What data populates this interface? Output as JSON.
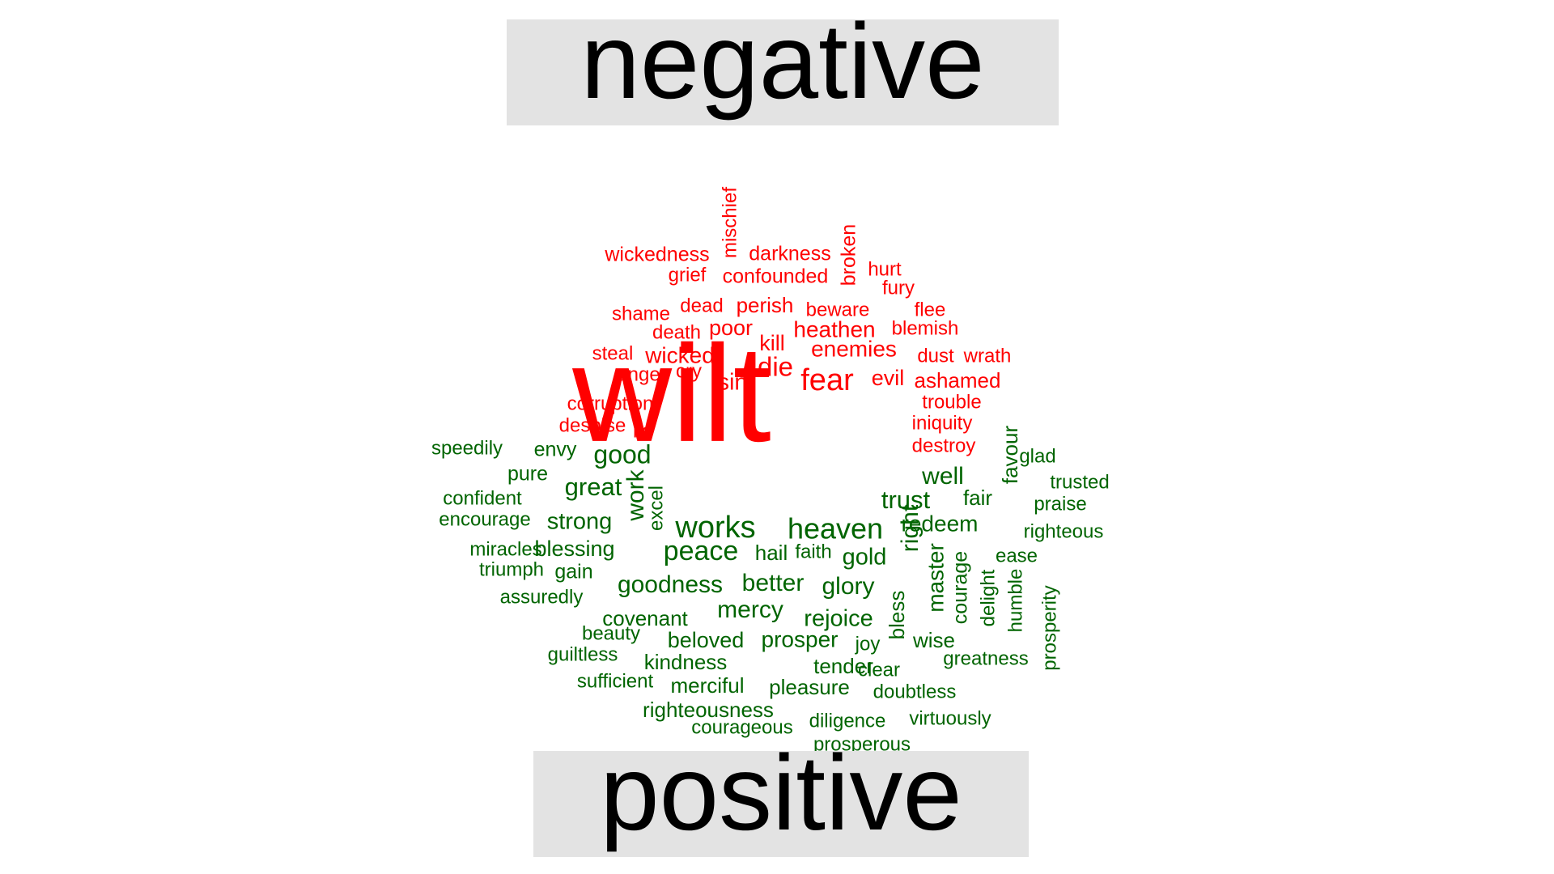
{
  "chart_data": {
    "type": "wordcloud",
    "groups": [
      {
        "name": "negative",
        "color": "#ff0000",
        "words": [
          {
            "text": "wilt",
            "size": 170
          },
          {
            "text": "fear",
            "size": 38
          },
          {
            "text": "die",
            "size": 33
          },
          {
            "text": "sin",
            "size": 29
          },
          {
            "text": "enemies",
            "size": 28
          },
          {
            "text": "heathen",
            "size": 28
          },
          {
            "text": "wicked",
            "size": 28
          },
          {
            "text": "poor",
            "size": 27
          },
          {
            "text": "evil",
            "size": 27
          },
          {
            "text": "kill",
            "size": 27
          },
          {
            "text": "perish",
            "size": 26
          },
          {
            "text": "ashamed",
            "size": 26
          },
          {
            "text": "wickedness",
            "size": 25
          },
          {
            "text": "darkness",
            "size": 25
          },
          {
            "text": "confounded",
            "size": 25
          },
          {
            "text": "broken",
            "size": 25
          },
          {
            "text": "mischief",
            "size": 24
          },
          {
            "text": "hurt",
            "size": 24
          },
          {
            "text": "fury",
            "size": 24
          },
          {
            "text": "grief",
            "size": 24
          },
          {
            "text": "shame",
            "size": 24
          },
          {
            "text": "dead",
            "size": 24
          },
          {
            "text": "beware",
            "size": 24
          },
          {
            "text": "flee",
            "size": 24
          },
          {
            "text": "death",
            "size": 24
          },
          {
            "text": "blemish",
            "size": 24
          },
          {
            "text": "steal",
            "size": 24
          },
          {
            "text": "dust",
            "size": 24
          },
          {
            "text": "wrath",
            "size": 24
          },
          {
            "text": "anger",
            "size": 24
          },
          {
            "text": "cry",
            "size": 24
          },
          {
            "text": "corruption",
            "size": 24
          },
          {
            "text": "trouble",
            "size": 24
          },
          {
            "text": "despise",
            "size": 24
          },
          {
            "text": "lie",
            "size": 24
          },
          {
            "text": "iniquity",
            "size": 24
          },
          {
            "text": "destroy",
            "size": 24
          }
        ]
      },
      {
        "name": "positive",
        "color": "#006400",
        "words": [
          {
            "text": "works",
            "size": 38
          },
          {
            "text": "heaven",
            "size": 36
          },
          {
            "text": "peace",
            "size": 34
          },
          {
            "text": "good",
            "size": 32
          },
          {
            "text": "great",
            "size": 31
          },
          {
            "text": "trust",
            "size": 31
          },
          {
            "text": "right",
            "size": 30
          },
          {
            "text": "work",
            "size": 30
          },
          {
            "text": "well",
            "size": 30
          },
          {
            "text": "goodness",
            "size": 30
          },
          {
            "text": "better",
            "size": 30
          },
          {
            "text": "glory",
            "size": 30
          },
          {
            "text": "mercy",
            "size": 30
          },
          {
            "text": "gold",
            "size": 29
          },
          {
            "text": "strong",
            "size": 29
          },
          {
            "text": "rejoice",
            "size": 29
          },
          {
            "text": "redeem",
            "size": 28
          },
          {
            "text": "master",
            "size": 28
          },
          {
            "text": "prosper",
            "size": 28
          },
          {
            "text": "beloved",
            "size": 27
          },
          {
            "text": "blessing",
            "size": 27
          },
          {
            "text": "favour",
            "size": 26
          },
          {
            "text": "fair",
            "size": 26
          },
          {
            "text": "hail",
            "size": 26
          },
          {
            "text": "covenant",
            "size": 26
          },
          {
            "text": "kindness",
            "size": 26
          },
          {
            "text": "tender",
            "size": 26
          },
          {
            "text": "merciful",
            "size": 26
          },
          {
            "text": "pleasure",
            "size": 26
          },
          {
            "text": "righteousness",
            "size": 26
          },
          {
            "text": "wise",
            "size": 26
          },
          {
            "text": "bless",
            "size": 26
          },
          {
            "text": "pure",
            "size": 25
          },
          {
            "text": "envy",
            "size": 25
          },
          {
            "text": "courage",
            "size": 25
          },
          {
            "text": "gain",
            "size": 25
          },
          {
            "text": "faith",
            "size": 24
          },
          {
            "text": "joy",
            "size": 24
          },
          {
            "text": "glad",
            "size": 24
          },
          {
            "text": "speedily",
            "size": 24
          },
          {
            "text": "trusted",
            "size": 24
          },
          {
            "text": "confident",
            "size": 24
          },
          {
            "text": "praise",
            "size": 24
          },
          {
            "text": "encourage",
            "size": 24
          },
          {
            "text": "excel",
            "size": 24
          },
          {
            "text": "righteous",
            "size": 24
          },
          {
            "text": "miracles",
            "size": 24
          },
          {
            "text": "ease",
            "size": 24
          },
          {
            "text": "triumph",
            "size": 24
          },
          {
            "text": "delight",
            "size": 24
          },
          {
            "text": "humble",
            "size": 24
          },
          {
            "text": "assuredly",
            "size": 24
          },
          {
            "text": "prosperity",
            "size": 24
          },
          {
            "text": "beauty",
            "size": 24
          },
          {
            "text": "guiltless",
            "size": 24
          },
          {
            "text": "clear",
            "size": 24
          },
          {
            "text": "greatness",
            "size": 24
          },
          {
            "text": "sufficient",
            "size": 24
          },
          {
            "text": "doubtless",
            "size": 24
          },
          {
            "text": "virtuously",
            "size": 24
          },
          {
            "text": "courageous",
            "size": 24
          },
          {
            "text": "diligence",
            "size": 24
          },
          {
            "text": "prosperous",
            "size": 24
          }
        ]
      }
    ]
  }
}
